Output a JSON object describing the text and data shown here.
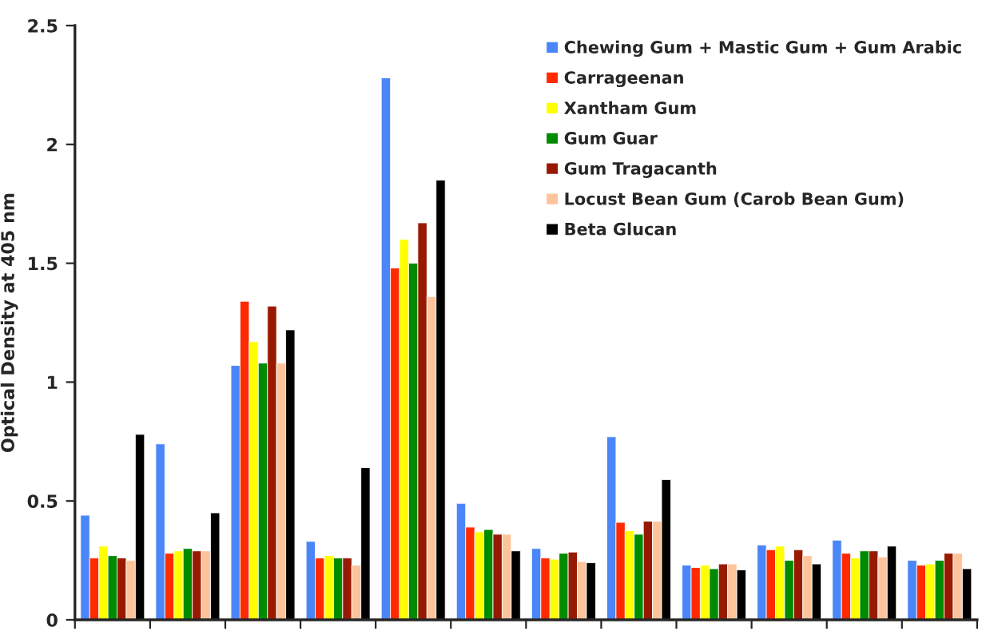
{
  "chart_data": {
    "type": "bar",
    "ylabel": "Optical Density at 405 nm",
    "categories": [
      null,
      null,
      null,
      null,
      null,
      null,
      null,
      null,
      null,
      null,
      null,
      null
    ],
    "series": [
      {
        "name": "Chewing Gum + Mastic Gum + Gum Arabic",
        "color": "#4a86f7",
        "values": [
          0.44,
          0.74,
          1.07,
          0.33,
          2.28,
          0.49,
          0.3,
          0.77,
          0.23,
          0.315,
          0.335,
          0.25
        ]
      },
      {
        "name": "Carrageenan",
        "color": "#ff2a00",
        "values": [
          0.26,
          0.28,
          1.34,
          0.26,
          1.48,
          0.39,
          0.26,
          0.41,
          0.22,
          0.295,
          0.28,
          0.23
        ]
      },
      {
        "name": "Xantham Gum",
        "color": "#ffff00",
        "values": [
          0.31,
          0.29,
          1.17,
          0.27,
          1.6,
          0.37,
          0.255,
          0.375,
          0.23,
          0.31,
          0.26,
          0.235
        ]
      },
      {
        "name": "Gum Guar",
        "color": "#008a00",
        "values": [
          0.27,
          0.3,
          1.08,
          0.26,
          1.5,
          0.38,
          0.28,
          0.36,
          0.215,
          0.25,
          0.29,
          0.25
        ]
      },
      {
        "name": "Gum Tragacanth",
        "color": "#971a00",
        "values": [
          0.26,
          0.29,
          1.32,
          0.26,
          1.67,
          0.36,
          0.285,
          0.415,
          0.235,
          0.295,
          0.29,
          0.28
        ]
      },
      {
        "name": "Locust Bean Gum (Carob Bean Gum)",
        "color": "#fdc49b",
        "values": [
          0.25,
          0.29,
          1.08,
          0.23,
          1.36,
          0.36,
          0.245,
          0.415,
          0.235,
          0.27,
          0.265,
          0.28
        ]
      },
      {
        "name": "Beta Glucan",
        "color": "#000000",
        "values": [
          0.78,
          0.45,
          1.22,
          0.64,
          1.85,
          0.29,
          0.24,
          0.59,
          0.21,
          0.235,
          0.31,
          0.215
        ]
      }
    ],
    "ylim": [
      0,
      2.5
    ],
    "yticks": [
      0,
      {
        "value": 0.5,
        "label": "0.5"
      },
      1,
      {
        "value": 1.5,
        "label": "1.5"
      },
      2,
      {
        "value": 2.5,
        "label": "2.5"
      }
    ],
    "tick_labels": "y",
    "grid": false,
    "legend": "top right"
  }
}
